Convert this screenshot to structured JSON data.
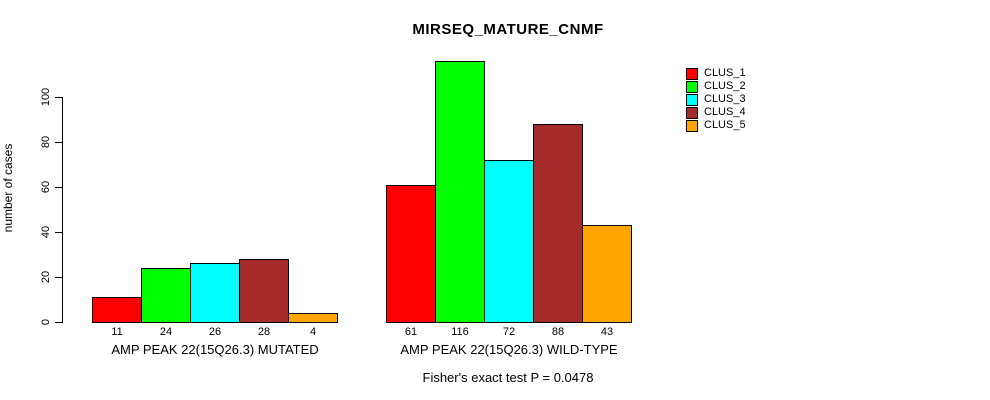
{
  "title": "MIRSEQ_MATURE_CNMF",
  "y_axis": {
    "label": "number of cases",
    "ticks": [
      0,
      20,
      40,
      60,
      80,
      100
    ]
  },
  "legend": {
    "items": [
      {
        "label": "CLUS_1",
        "color": "#FF0000"
      },
      {
        "label": "CLUS_2",
        "color": "#00FF00"
      },
      {
        "label": "CLUS_3",
        "color": "#00FFFF"
      },
      {
        "label": "CLUS_4",
        "color": "#A52A2A"
      },
      {
        "label": "CLUS_5",
        "color": "#FFA500"
      }
    ]
  },
  "chart_data": {
    "type": "bar",
    "title": "MIRSEQ_MATURE_CNMF",
    "categories": [
      "AMP PEAK 22(15Q26.3) MUTATED",
      "AMP PEAK 22(15Q26.3) WILD-TYPE"
    ],
    "series": [
      {
        "name": "CLUS_1",
        "color": "#FF0000",
        "values": [
          11,
          61
        ]
      },
      {
        "name": "CLUS_2",
        "color": "#00FF00",
        "values": [
          24,
          116
        ]
      },
      {
        "name": "CLUS_3",
        "color": "#00FFFF",
        "values": [
          26,
          72
        ]
      },
      {
        "name": "CLUS_4",
        "color": "#A52A2A",
        "values": [
          28,
          88
        ]
      },
      {
        "name": "CLUS_5",
        "color": "#FFA500",
        "values": [
          4,
          43
        ]
      }
    ],
    "bar_value_labels": [
      [
        11,
        24,
        26,
        28,
        4
      ],
      [
        61,
        116,
        72,
        88,
        43
      ]
    ],
    "xlabel": "",
    "ylabel": "number of cases",
    "ylim": [
      0,
      116
    ],
    "grid": false,
    "legend_position": "top-right",
    "annotation": "Fisher's exact test P = 0.0478"
  },
  "footer": {
    "text": "Fisher's exact test P = 0.0478"
  }
}
